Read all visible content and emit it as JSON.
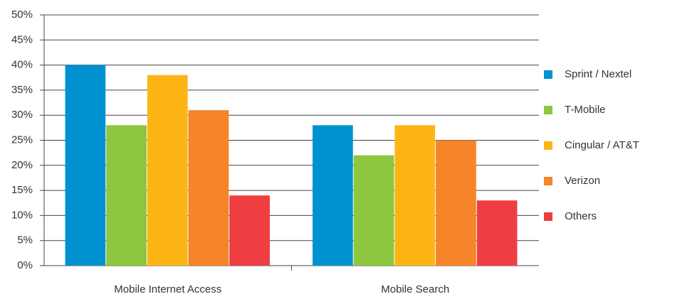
{
  "chart_data": {
    "type": "bar",
    "categories": [
      "Mobile Internet Access",
      "Mobile Search"
    ],
    "series": [
      {
        "name": "Sprint / Nextel",
        "color": "#0092d0",
        "values": [
          40,
          28
        ]
      },
      {
        "name": "T-Mobile",
        "color": "#8dc63f",
        "values": [
          28,
          22
        ]
      },
      {
        "name": "Cingular / AT&T",
        "color": "#fdb515",
        "values": [
          38,
          28
        ]
      },
      {
        "name": "Verizon",
        "color": "#f68428",
        "values": [
          31,
          25
        ]
      },
      {
        "name": "Others",
        "color": "#ef3e42",
        "values": [
          14,
          13
        ]
      }
    ],
    "ylim": [
      0,
      50
    ],
    "yticks": [
      {
        "value": 0,
        "label": "0%"
      },
      {
        "value": 5,
        "label": "5%"
      },
      {
        "value": 10,
        "label": "10%"
      },
      {
        "value": 15,
        "label": "15%"
      },
      {
        "value": 20,
        "label": "20%"
      },
      {
        "value": 25,
        "label": "25%"
      },
      {
        "value": 30,
        "label": "30%"
      },
      {
        "value": 35,
        "label": "35%"
      },
      {
        "value": 40,
        "label": "40%"
      },
      {
        "value": 45,
        "label": "45%"
      },
      {
        "value": 50,
        "label": "50%"
      }
    ],
    "grid": true,
    "legend": "right"
  }
}
